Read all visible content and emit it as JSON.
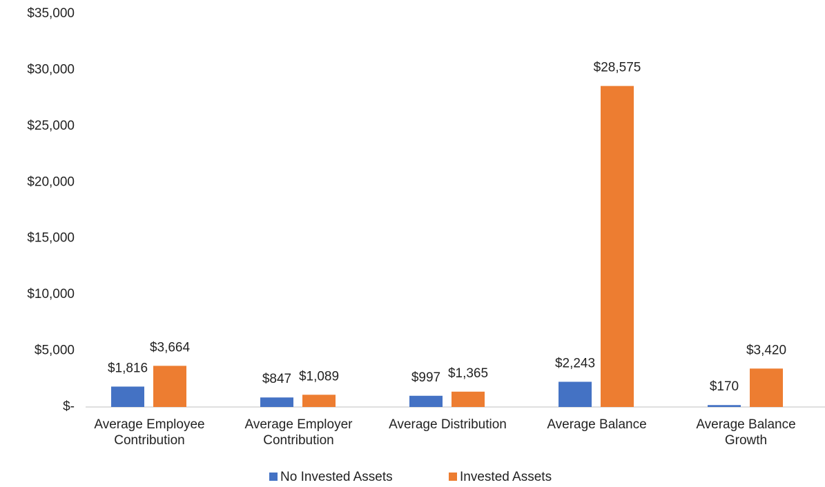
{
  "chart_data": {
    "type": "bar",
    "categories": [
      "Average Employee Contribution",
      "Average Employer Contribution",
      "Average Distribution",
      "Average Balance",
      "Average Balance Growth"
    ],
    "series": [
      {
        "name": "No Invested Assets",
        "color": "#4472c4",
        "values": [
          1816,
          847,
          997,
          2243,
          170
        ],
        "value_labels": [
          "$1,816",
          "$847",
          "$997",
          "$2,243",
          "$170"
        ]
      },
      {
        "name": "Invested Assets",
        "color": "#ed7d31",
        "values": [
          3664,
          1089,
          1365,
          28575,
          3420
        ],
        "value_labels": [
          "$3,664",
          "$1,089",
          "$1,365",
          "$28,575",
          "$3,420"
        ]
      }
    ],
    "ylim": [
      0,
      35000
    ],
    "yticks": [
      {
        "value": 0,
        "label": "$-"
      },
      {
        "value": 5000,
        "label": "$5,000"
      },
      {
        "value": 10000,
        "label": "$10,000"
      },
      {
        "value": 15000,
        "label": "$15,000"
      },
      {
        "value": 20000,
        "label": "$20,000"
      },
      {
        "value": 25000,
        "label": "$25,000"
      },
      {
        "value": 30000,
        "label": "$30,000"
      },
      {
        "value": 35000,
        "label": "$35,000"
      }
    ],
    "grid": false,
    "legend": "bottom"
  }
}
